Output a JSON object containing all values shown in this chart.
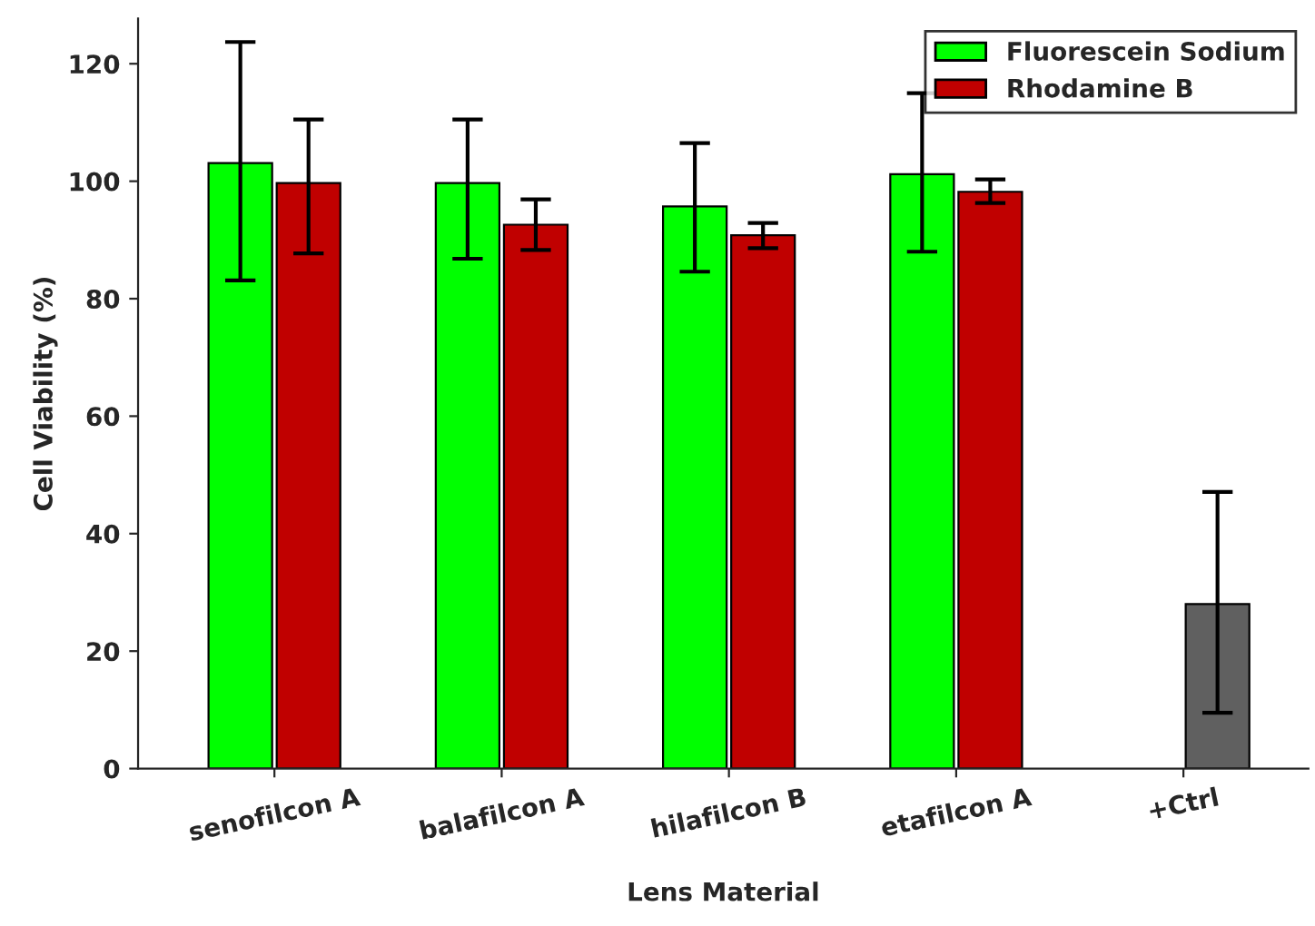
{
  "chart_data": {
    "type": "bar",
    "xlabel": "Lens Material",
    "ylabel": "Cell Viability (%)",
    "categories": [
      "senofilcon A",
      "balafilcon A",
      "hilafilcon B",
      "etafilcon A",
      "+Ctrl"
    ],
    "series": [
      {
        "name": "Fluorescein Sodium",
        "color": "#00ff00",
        "values": [
          103.1,
          99.7,
          95.7,
          101.2,
          null
        ],
        "errors": [
          [
            83.1,
            123.7
          ],
          [
            86.8,
            110.5
          ],
          [
            84.6,
            106.5
          ],
          [
            88,
            115
          ],
          null
        ]
      },
      {
        "name": "Rhodamine B",
        "color": "#c00000",
        "colors": [
          "#c00000",
          "#c00000",
          "#c00000",
          "#c00000",
          "#606060"
        ],
        "values": [
          99.7,
          92.6,
          90.8,
          98.2,
          28
        ],
        "errors": [
          [
            87.7,
            110.5
          ],
          [
            88.3,
            96.9
          ],
          [
            88.6,
            92.9
          ],
          [
            96.3,
            100.3
          ],
          [
            9.5,
            47.1
          ]
        ]
      }
    ],
    "ylim": [
      0,
      127.7
    ],
    "yticks": [
      0,
      20,
      40,
      60,
      80,
      100,
      120
    ],
    "grid": false,
    "legend": "top right"
  }
}
